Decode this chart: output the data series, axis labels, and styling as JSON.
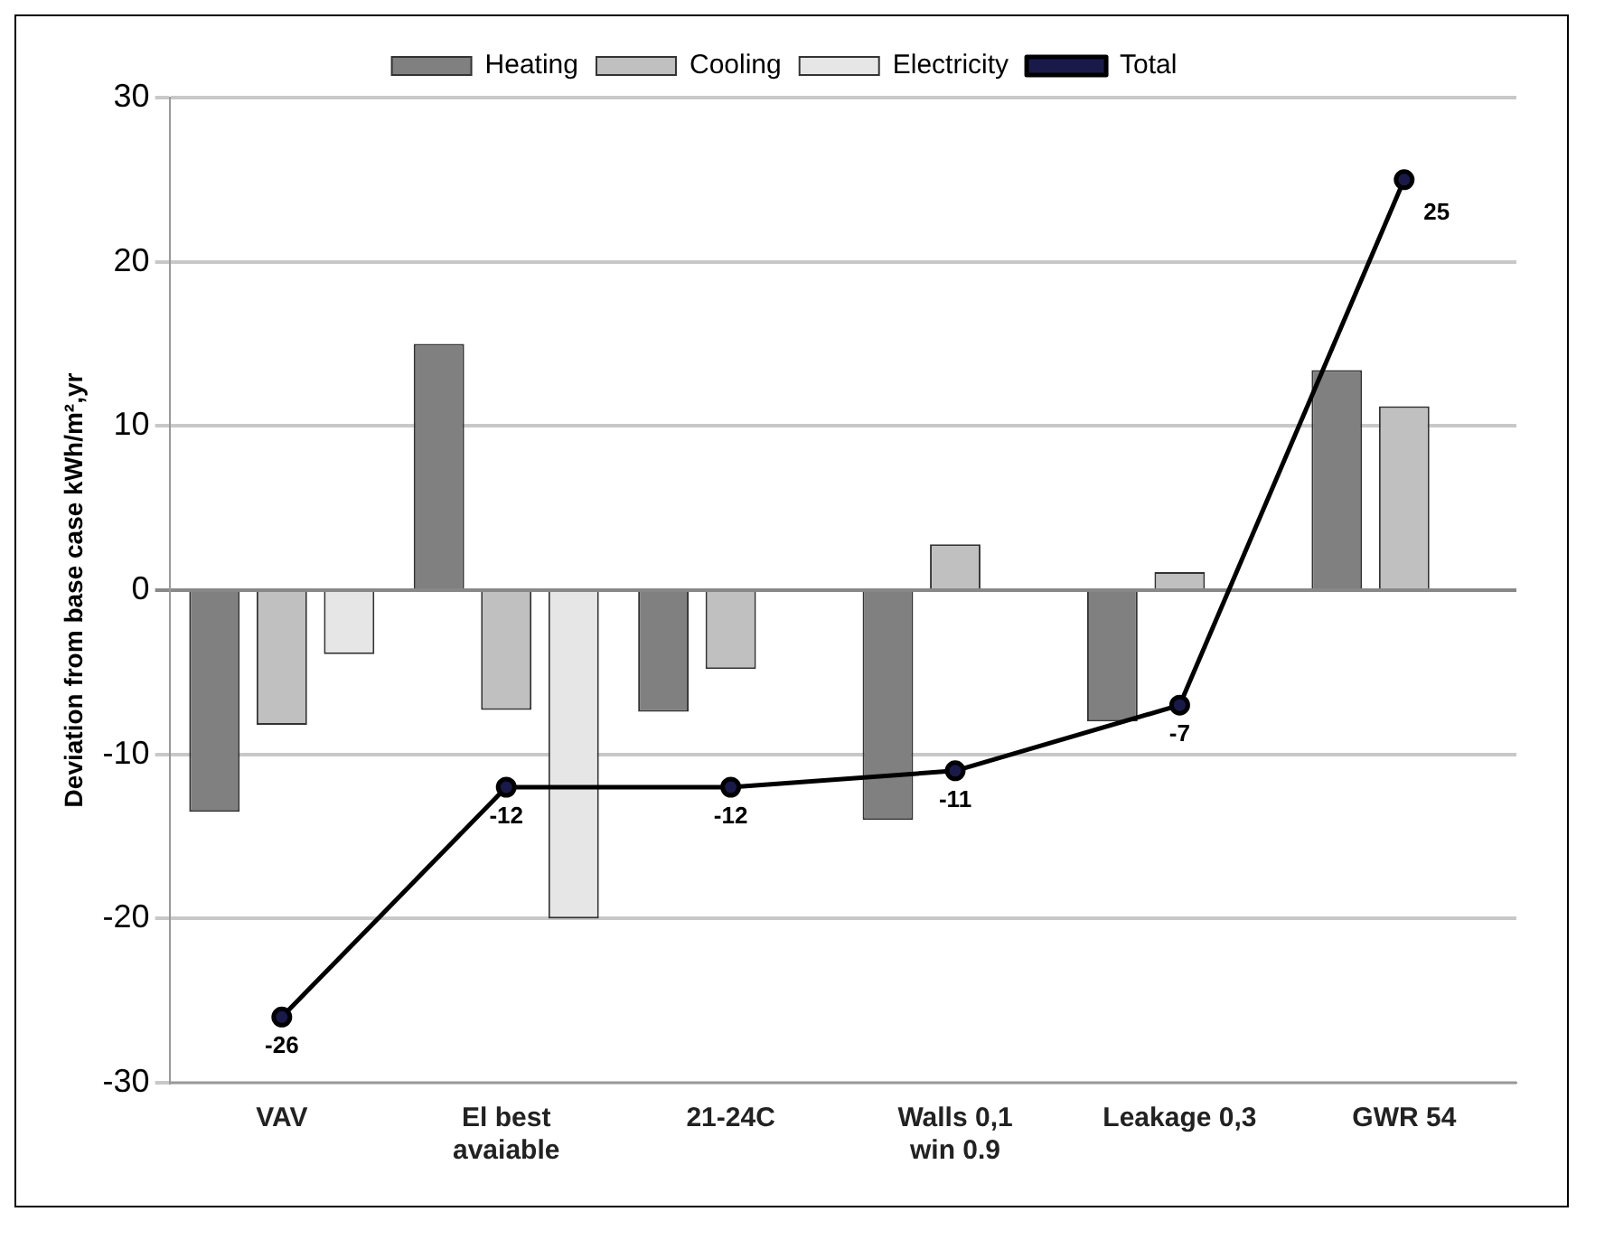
{
  "chart_data": {
    "type": "bar",
    "ylabel": "Deviation from base case kWh/m²,yr",
    "categories": [
      "VAV",
      "El best avaiable",
      "21-24C",
      "Walls 0,1 win 0.9",
      "Leakage 0,3",
      "GWR 54"
    ],
    "series": [
      {
        "name": "Heating",
        "color": "#808080",
        "values": [
          -13.5,
          15,
          -7.4,
          -14,
          -8,
          13.4
        ]
      },
      {
        "name": "Cooling",
        "color": "#c0c0c0",
        "values": [
          -8.2,
          -7.3,
          -4.8,
          2.8,
          1.1,
          11.2
        ]
      },
      {
        "name": "Electricity",
        "color": "#e6e6e6",
        "values": [
          -3.9,
          -20,
          0,
          0,
          0,
          0
        ]
      },
      {
        "name": "Total",
        "type": "line",
        "color": "#000000",
        "marker": "circle",
        "values": [
          -26,
          -12,
          -12,
          -11,
          -7,
          25
        ],
        "value_labels": [
          "-26",
          "-12",
          "-12",
          "-11",
          "-7",
          "25"
        ]
      }
    ],
    "ylim": [
      -30,
      30
    ],
    "yticks": [
      -30,
      -20,
      -10,
      0,
      10,
      20,
      30
    ],
    "grid": "y",
    "legend": "top"
  }
}
